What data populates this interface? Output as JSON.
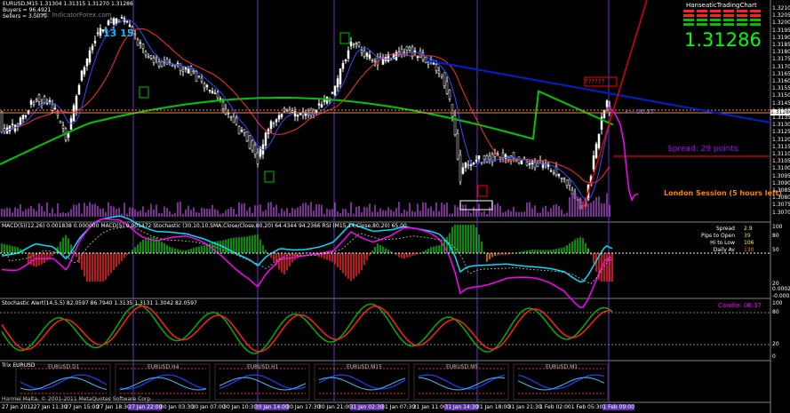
{
  "main": {
    "symbol_line": "EURUSD,M15  1.31304 1.31315 1.31270 1.31286",
    "buyers_line": "Buyers = 96.4921",
    "sellers_line": "Sellers = 3.5079",
    "watermark": "Alert: IndicatorForex.com",
    "number_label": "13 15",
    "brand": "HanseaticTradingChart",
    "big_price": "1.31286",
    "timer": "<-- 06:37",
    "question_marks": "??????",
    "spread_label": "Spread: 29 points.",
    "session_label": "London Session (5 hours left)",
    "price_scale": [
      "1.32100",
      "1.32050",
      "1.32000",
      "1.31950",
      "1.31900",
      "1.31850",
      "1.31800",
      "1.31750",
      "1.31700",
      "1.31650",
      "1.31600",
      "1.31550",
      "1.31500",
      "1.31450",
      "1.31400",
      "1.31350",
      "1.31300",
      "1.31250",
      "1.31200",
      "1.31150",
      "1.31100",
      "1.31050",
      "1.31000",
      "1.30950",
      "1.30900",
      "1.30850",
      "1.30800",
      "1.30750",
      "1.30700"
    ],
    "current_price_tag": "1.31286",
    "colors": {
      "up": "#00ff00",
      "down": "#ff0000",
      "blue_ma": "#3050ff",
      "red_ma": "#ff3030",
      "green_ma": "#00c800",
      "trend_blue": "#0020d0",
      "trend_red": "#e00000",
      "magenta": "#ff00ff",
      "purple": "#8030c0",
      "orange": "#ff8000"
    }
  },
  "macd": {
    "title": "MACD(5)(12,26) 0.001838 0.000000  MACD(5) 0.001472  Stochastic (30,10,10,SMA,Close/Close,80,20) 64.4344 94.2366  RSI (M15,14,Close,80,20) 65.00",
    "scale": [
      "100",
      "80",
      "50",
      "20",
      "0.00020",
      "-0.00033"
    ],
    "info_rows": [
      {
        "label": "Spread",
        "value": "2.9"
      },
      {
        "label": "Pips to Open",
        "value": "39"
      },
      {
        "label": "Hi to Low",
        "value": "106"
      },
      {
        "label": "Daily Av",
        "value": "130"
      }
    ]
  },
  "stoch": {
    "title": "Stochastic Alert(14,5,5) 82.0597 86.7940 1.3135 1.3131 1.3042 82.0597",
    "candle_label": "Candle: 06:37",
    "scale": [
      "100",
      "80",
      "20",
      "0"
    ]
  },
  "trix": {
    "title": "Trix EURUSD",
    "panels": [
      "EURUSD D1",
      "EURUSD H4",
      "EURUSD H1",
      "EURUSD M15",
      "EURUSD M5",
      "EURUSD M1"
    ],
    "copyright": "Harmel Malta, © 2001-2011 MetaQuotes Software Corp."
  },
  "time_axis": [
    "27 Jan 2012",
    "27 Jan 11:30",
    "27 Jan 15:00",
    "27 Jan 18:30",
    "27 Jan 22:00",
    "30 Jan 03:30",
    "30 Jan 07:00",
    "30 Jan 10:30",
    "30 Jan 14:00",
    "30 Jan 17:30",
    "30 Jan 21:00",
    "31 Jan 02:30",
    "31 Jan 07:30",
    "31 Jan 11:00",
    "31 Jan 14:30",
    "31 Jan 18:00",
    "31 Jan 21:30",
    "1 Feb 02:00",
    "1 Feb 05:30",
    "1 Feb 09:00"
  ]
}
